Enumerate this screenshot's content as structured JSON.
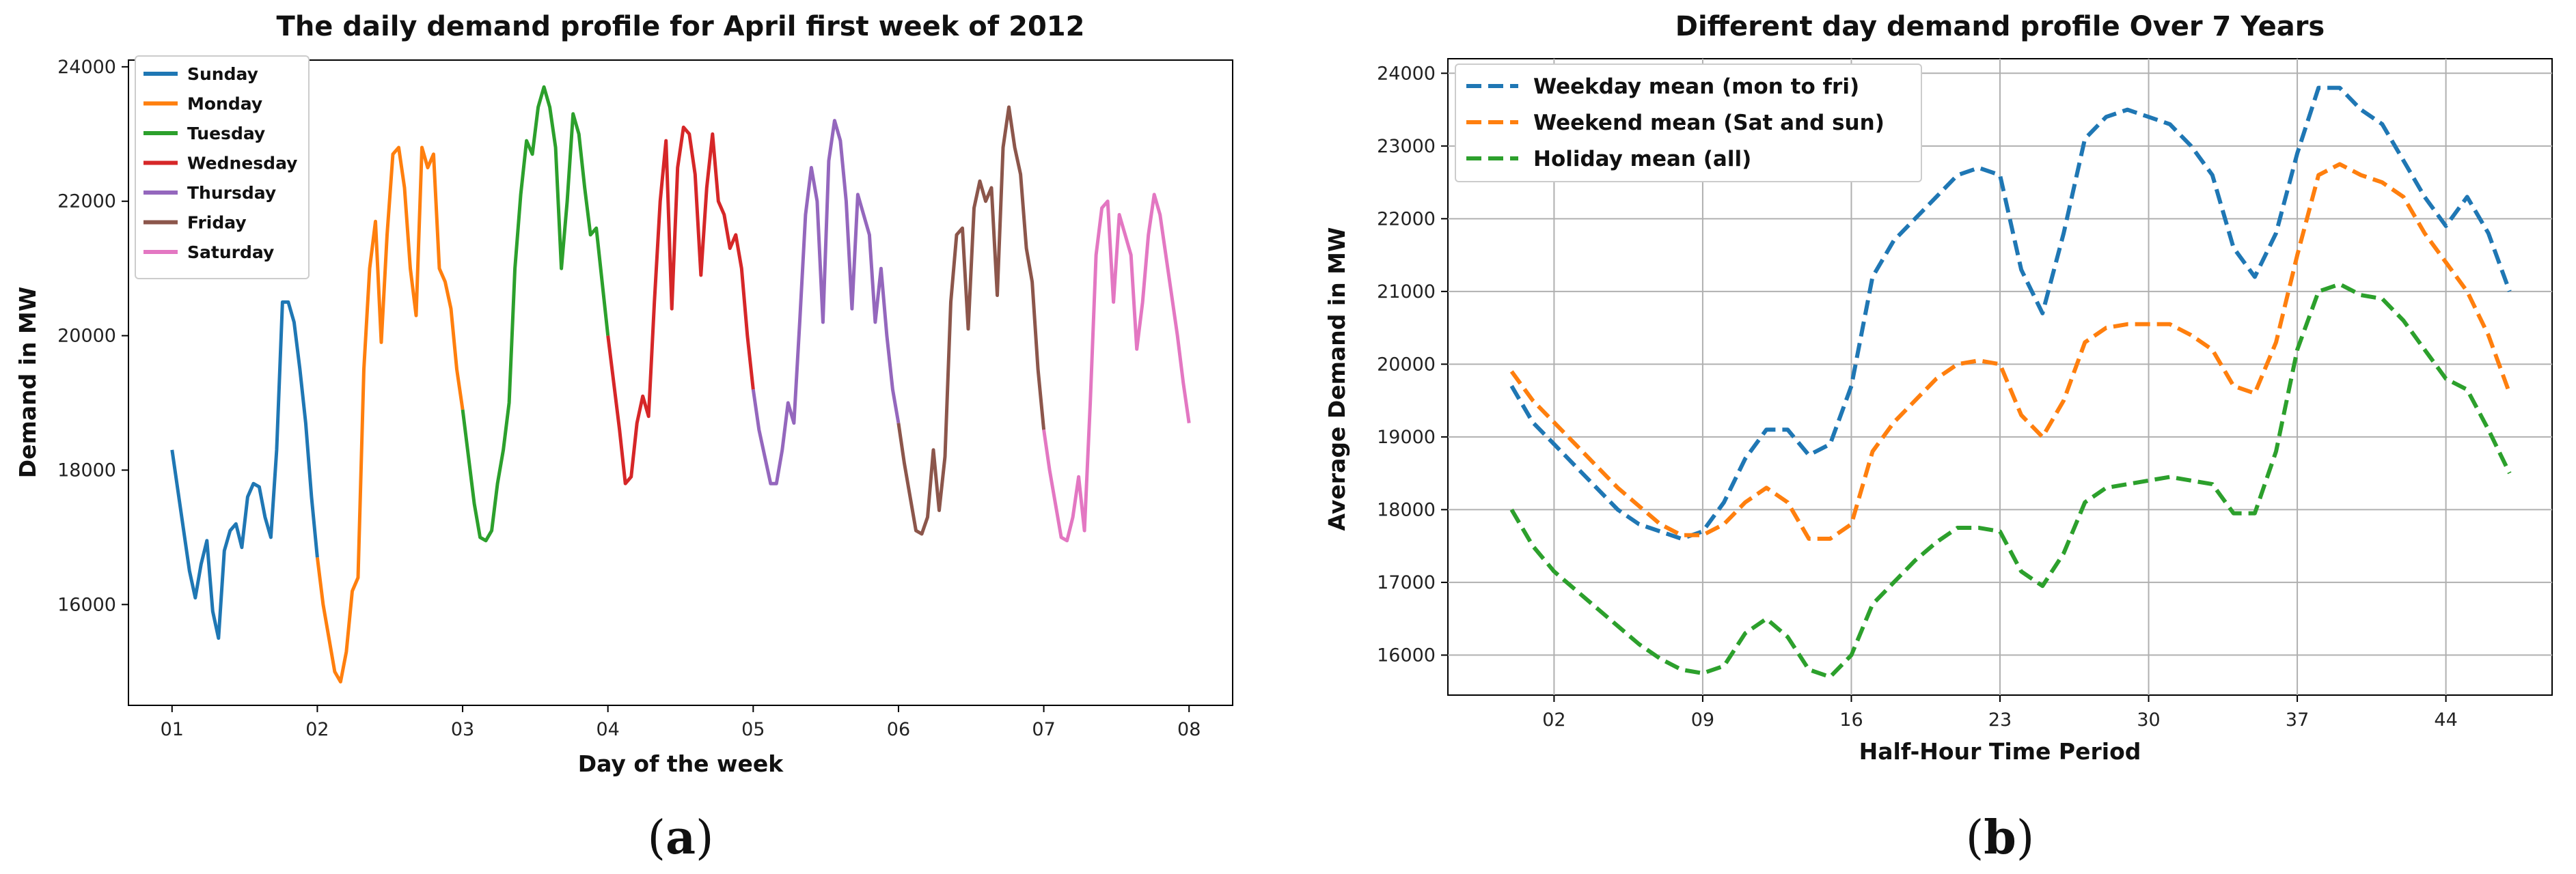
{
  "captions": {
    "a_open": "(",
    "a_letter": "a",
    "a_close": ")",
    "b_open": "(",
    "b_letter": "b",
    "b_close": ")"
  },
  "chart_data": [
    {
      "type": "line",
      "title": "The daily demand profile for April first week of 2012",
      "xlabel": "Day of the week",
      "ylabel": "Demand in MW",
      "xlim": [
        0.7,
        8.3
      ],
      "ylim": [
        14500,
        24100
      ],
      "xticks": [
        1,
        2,
        3,
        4,
        5,
        6,
        7,
        8
      ],
      "xtick_labels": [
        "01",
        "02",
        "03",
        "04",
        "05",
        "06",
        "07",
        "08"
      ],
      "yticks": [
        16000,
        18000,
        20000,
        22000,
        24000
      ],
      "ytick_labels": [
        "16000",
        "18000",
        "20000",
        "22000",
        "24000"
      ],
      "grid": false,
      "legend_position": "top-left",
      "series": [
        {
          "name": "Sunday",
          "color": "#1f77b4",
          "x": [
            1.0,
            1.04,
            1.08,
            1.12,
            1.16,
            1.2,
            1.24,
            1.28,
            1.32,
            1.36,
            1.4,
            1.44,
            1.48,
            1.52,
            1.56,
            1.6,
            1.64,
            1.68,
            1.72,
            1.76,
            1.8,
            1.84,
            1.88,
            1.92,
            1.96,
            2.0
          ],
          "y": [
            18300,
            17700,
            17100,
            16500,
            16100,
            16600,
            16950,
            15900,
            15500,
            16800,
            17100,
            17200,
            16850,
            17600,
            17800,
            17750,
            17300,
            17000,
            18300,
            20500,
            20500,
            20200,
            19500,
            18700,
            17600,
            16700
          ]
        },
        {
          "name": "Monday",
          "color": "#ff7f0e",
          "x": [
            2.0,
            2.04,
            2.08,
            2.12,
            2.16,
            2.2,
            2.24,
            2.28,
            2.32,
            2.36,
            2.4,
            2.44,
            2.48,
            2.52,
            2.56,
            2.6,
            2.64,
            2.68,
            2.72,
            2.76,
            2.8,
            2.84,
            2.88,
            2.92,
            2.96,
            3.0
          ],
          "y": [
            16700,
            16000,
            15500,
            15000,
            14850,
            15300,
            16200,
            16400,
            19500,
            21000,
            21700,
            19900,
            21500,
            22700,
            22800,
            22200,
            21000,
            20300,
            22800,
            22500,
            22700,
            21000,
            20800,
            20400,
            19500,
            18900
          ]
        },
        {
          "name": "Tuesday",
          "color": "#2ca02c",
          "x": [
            3.0,
            3.04,
            3.08,
            3.12,
            3.16,
            3.2,
            3.24,
            3.28,
            3.32,
            3.36,
            3.4,
            3.44,
            3.48,
            3.52,
            3.56,
            3.6,
            3.64,
            3.68,
            3.72,
            3.76,
            3.8,
            3.84,
            3.88,
            3.92,
            3.96,
            4.0
          ],
          "y": [
            18900,
            18200,
            17500,
            17000,
            16950,
            17100,
            17800,
            18300,
            19000,
            21000,
            22100,
            22900,
            22700,
            23400,
            23700,
            23400,
            22800,
            21000,
            22000,
            23300,
            23000,
            22200,
            21500,
            21600,
            20800,
            20000
          ]
        },
        {
          "name": "Wednesday",
          "color": "#d62728",
          "x": [
            4.0,
            4.04,
            4.08,
            4.12,
            4.16,
            4.2,
            4.24,
            4.28,
            4.32,
            4.36,
            4.4,
            4.44,
            4.48,
            4.52,
            4.56,
            4.6,
            4.64,
            4.68,
            4.72,
            4.76,
            4.8,
            4.84,
            4.88,
            4.92,
            4.96,
            5.0
          ],
          "y": [
            20000,
            19300,
            18600,
            17800,
            17900,
            18700,
            19100,
            18800,
            20500,
            22000,
            22900,
            20400,
            22500,
            23100,
            23000,
            22400,
            20900,
            22200,
            23000,
            22000,
            21800,
            21300,
            21500,
            21000,
            20000,
            19200
          ]
        },
        {
          "name": "Thursday",
          "color": "#9467bd",
          "x": [
            5.0,
            5.04,
            5.08,
            5.12,
            5.16,
            5.2,
            5.24,
            5.28,
            5.32,
            5.36,
            5.4,
            5.44,
            5.48,
            5.52,
            5.56,
            5.6,
            5.64,
            5.68,
            5.72,
            5.76,
            5.8,
            5.84,
            5.88,
            5.92,
            5.96,
            6.0
          ],
          "y": [
            19200,
            18600,
            18200,
            17800,
            17800,
            18300,
            19000,
            18700,
            20200,
            21800,
            22500,
            22000,
            20200,
            22600,
            23200,
            22900,
            22000,
            20400,
            22100,
            21800,
            21500,
            20200,
            21000,
            20000,
            19200,
            18700
          ]
        },
        {
          "name": "Friday",
          "color": "#8c564b",
          "x": [
            6.0,
            6.04,
            6.08,
            6.12,
            6.16,
            6.2,
            6.24,
            6.28,
            6.32,
            6.36,
            6.4,
            6.44,
            6.48,
            6.52,
            6.56,
            6.6,
            6.64,
            6.68,
            6.72,
            6.76,
            6.8,
            6.84,
            6.88,
            6.92,
            6.96,
            7.0
          ],
          "y": [
            18700,
            18100,
            17600,
            17100,
            17050,
            17300,
            18300,
            17400,
            18200,
            20500,
            21500,
            21600,
            20100,
            21900,
            22300,
            22000,
            22200,
            20600,
            22800,
            23400,
            22800,
            22400,
            21300,
            20800,
            19500,
            18600
          ]
        },
        {
          "name": "Saturday",
          "color": "#e377c2",
          "x": [
            7.0,
            7.04,
            7.08,
            7.12,
            7.16,
            7.2,
            7.24,
            7.28,
            7.32,
            7.36,
            7.4,
            7.44,
            7.48,
            7.52,
            7.56,
            7.6,
            7.64,
            7.68,
            7.72,
            7.76,
            7.8,
            7.84,
            7.88,
            7.92,
            7.96,
            8.0
          ],
          "y": [
            18600,
            18000,
            17500,
            17000,
            16950,
            17300,
            17900,
            17100,
            19000,
            21200,
            21900,
            22000,
            20500,
            21800,
            21500,
            21200,
            19800,
            20500,
            21500,
            22100,
            21800,
            21200,
            20600,
            20000,
            19300,
            18700
          ]
        }
      ]
    },
    {
      "type": "line",
      "title": "Different day demand profile Over 7 Years",
      "xlabel": "Half-Hour Time Period",
      "ylabel": "Average Demand in MW",
      "xlim": [
        -3,
        49
      ],
      "ylim": [
        15450,
        24200
      ],
      "xticks": [
        2,
        9,
        16,
        23,
        30,
        37,
        44
      ],
      "xtick_labels": [
        "02",
        "09",
        "16",
        "23",
        "30",
        "37",
        "44"
      ],
      "yticks": [
        16000,
        17000,
        18000,
        19000,
        20000,
        21000,
        22000,
        23000,
        24000
      ],
      "ytick_labels": [
        "16000",
        "17000",
        "18000",
        "19000",
        "20000",
        "21000",
        "22000",
        "23000",
        "24000"
      ],
      "grid": true,
      "legend_position": "top-left",
      "line_style": "dashed",
      "x": [
        0,
        1,
        2,
        3,
        4,
        5,
        6,
        7,
        8,
        9,
        10,
        11,
        12,
        13,
        14,
        15,
        16,
        17,
        18,
        19,
        20,
        21,
        22,
        23,
        24,
        25,
        26,
        27,
        28,
        29,
        30,
        31,
        32,
        33,
        34,
        35,
        36,
        37,
        38,
        39,
        40,
        41,
        42,
        43,
        44,
        45,
        46,
        47
      ],
      "series": [
        {
          "name": "Weekday mean (mon to fri)",
          "color": "#1f77b4",
          "values": [
            19700,
            19200,
            18900,
            18600,
            18300,
            18000,
            17800,
            17700,
            17600,
            17700,
            18100,
            18700,
            19100,
            19100,
            18750,
            18900,
            19700,
            21200,
            21700,
            22000,
            22300,
            22600,
            22700,
            22600,
            21300,
            20700,
            21800,
            23100,
            23400,
            23500,
            23400,
            23300,
            23000,
            22600,
            21600,
            21200,
            21800,
            22900,
            23800,
            23800,
            23500,
            23300,
            22800,
            22300,
            21900,
            22300,
            21800,
            21000
          ]
        },
        {
          "name": "Weekend mean (Sat and sun)",
          "color": "#ff7f0e",
          "values": [
            19900,
            19500,
            19200,
            18900,
            18600,
            18300,
            18050,
            17800,
            17650,
            17650,
            17800,
            18100,
            18300,
            18100,
            17600,
            17600,
            17800,
            18800,
            19200,
            19500,
            19800,
            20000,
            20050,
            20000,
            19300,
            19000,
            19500,
            20300,
            20500,
            20550,
            20550,
            20550,
            20400,
            20200,
            19700,
            19600,
            20300,
            21500,
            22600,
            22750,
            22600,
            22500,
            22300,
            21800,
            21400,
            21000,
            20400,
            19600
          ]
        },
        {
          "name": "Holiday mean (all)",
          "color": "#2ca02c",
          "values": [
            18000,
            17500,
            17150,
            16900,
            16650,
            16400,
            16150,
            15950,
            15800,
            15750,
            15850,
            16300,
            16500,
            16250,
            15800,
            15700,
            16000,
            16700,
            17000,
            17300,
            17550,
            17750,
            17750,
            17700,
            17150,
            16950,
            17400,
            18100,
            18300,
            18350,
            18400,
            18450,
            18400,
            18350,
            17950,
            17950,
            18800,
            20200,
            21000,
            21100,
            20950,
            20900,
            20600,
            20200,
            19800,
            19650,
            19100,
            18500
          ]
        }
      ]
    }
  ]
}
